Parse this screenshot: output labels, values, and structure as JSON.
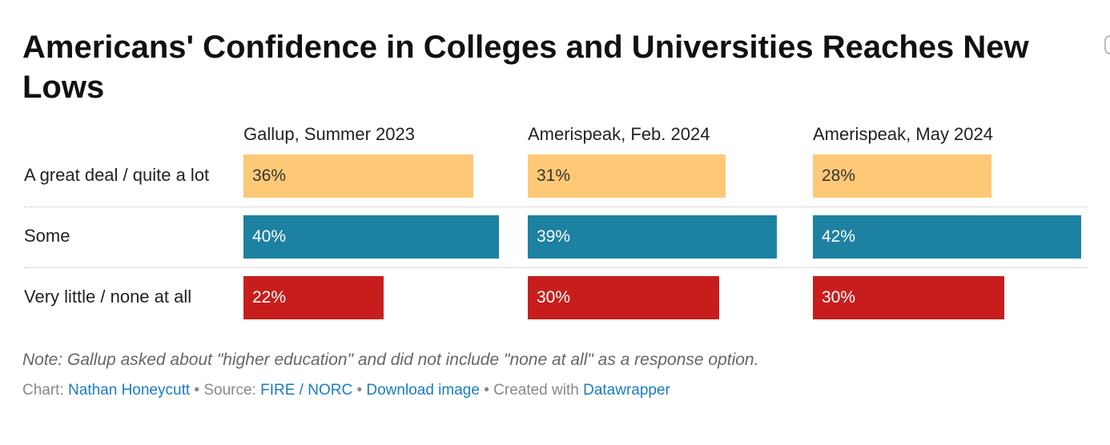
{
  "title": "Americans' Confidence in Colleges and Universities Reaches New Lows",
  "note": "Note: Gallup asked about \"higher education\" and did not include \"none at all\" as a response option.",
  "footer": {
    "chart_prefix": "Chart:",
    "author": "Nathan Honeycutt",
    "sep": "•",
    "source_prefix": "Source:",
    "source": "FIRE / NORC",
    "download": "Download image",
    "created_prefix": "Created with",
    "tool": "Datawrapper"
  },
  "colors": {
    "a_great_deal": "#fec977",
    "some": "#1d81a2",
    "very_little": "#c71e1d",
    "separator": "#bbbbbb"
  },
  "chart_data": {
    "type": "bar",
    "orientation": "horizontal",
    "layout": "small-multiples",
    "categories": [
      "A great deal / quite a lot",
      "Some",
      "Very little / none at all"
    ],
    "series": [
      {
        "name": "Gallup, Summer 2023",
        "values": [
          36,
          40,
          22
        ],
        "labels": [
          "36%",
          "40%",
          "22%"
        ]
      },
      {
        "name": "Amerispeak, Feb. 2024",
        "values": [
          31,
          39,
          30
        ],
        "labels": [
          "31%",
          "39%",
          "30%"
        ]
      },
      {
        "name": "Amerispeak, May 2024",
        "values": [
          28,
          42,
          30
        ],
        "labels": [
          "28%",
          "42%",
          "30%"
        ]
      }
    ],
    "xlim": [
      0,
      42
    ],
    "grid": false,
    "legend": "none"
  }
}
